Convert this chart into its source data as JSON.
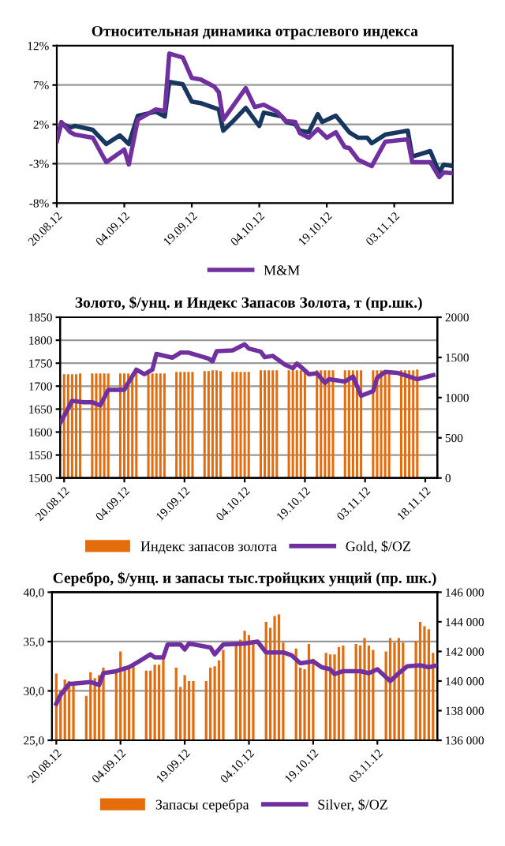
{
  "chart_data": [
    {
      "type": "line",
      "title": "Относительная динамика отраслевого индекса",
      "xlim": [
        "2012-08-20",
        "2012-11-16"
      ],
      "xticks": [
        {
          "value": "2012-08-20",
          "label": "20.08.12"
        },
        {
          "value": "2012-09-04",
          "label": "04.09.12"
        },
        {
          "value": "2012-09-19",
          "label": "19.09.12"
        },
        {
          "value": "2012-10-04",
          "label": "04.10.12"
        },
        {
          "value": "2012-10-19",
          "label": "19.10.12"
        },
        {
          "value": "2012-11-03",
          "label": "03.11.12"
        }
      ],
      "ylim": [
        -8,
        12
      ],
      "yticks": [
        {
          "value": -8,
          "label": "-8%"
        },
        {
          "value": -3,
          "label": "-3%"
        },
        {
          "value": 2,
          "label": "2%"
        },
        {
          "value": 7,
          "label": "7%"
        },
        {
          "value": 12,
          "label": "12%"
        }
      ],
      "grid": "y",
      "legend": "bottom",
      "series": [
        {
          "color": "#17375e",
          "x": [
            "2012-08-20",
            "2012-08-21",
            "2012-08-23",
            "2012-08-24",
            "2012-08-28",
            "2012-08-31",
            "2012-09-03",
            "2012-09-05",
            "2012-09-07",
            "2012-09-11",
            "2012-09-13",
            "2012-09-14",
            "2012-09-17",
            "2012-09-19",
            "2012-09-21",
            "2012-09-25",
            "2012-09-26",
            "2012-09-28",
            "2012-10-01",
            "2012-10-04",
            "2012-10-05",
            "2012-10-09",
            "2012-10-10",
            "2012-10-12",
            "2012-10-13",
            "2012-10-15",
            "2012-10-17",
            "2012-10-18",
            "2012-10-21",
            "2012-10-24",
            "2012-10-26",
            "2012-10-28",
            "2012-10-29",
            "2012-11-01",
            "2012-11-06",
            "2012-11-07",
            "2012-11-11",
            "2012-11-13",
            "2012-11-14",
            "2012-11-16"
          ],
          "values": [
            -0.1,
            2.1,
            1.6,
            1.8,
            1.3,
            -0.5,
            0.6,
            -0.5,
            3.1,
            3.6,
            3.0,
            7.4,
            7.1,
            4.9,
            4.7,
            3.9,
            1.2,
            2.3,
            4.1,
            1.8,
            3.5,
            3.0,
            2.3,
            2.0,
            1.2,
            1.0,
            3.3,
            2.3,
            3.1,
            1.0,
            0.3,
            0.3,
            -0.4,
            0.7,
            1.2,
            -2.1,
            -1.4,
            -4.1,
            -3.1,
            -3.3
          ]
        },
        {
          "name": "M&M",
          "color": "#7030a0",
          "x": [
            "2012-08-20",
            "2012-08-21",
            "2012-08-23",
            "2012-08-24",
            "2012-08-28",
            "2012-08-30",
            "2012-08-31",
            "2012-09-04",
            "2012-09-05",
            "2012-09-07",
            "2012-09-11",
            "2012-09-13",
            "2012-09-14",
            "2012-09-17",
            "2012-09-19",
            "2012-09-21",
            "2012-09-24",
            "2012-09-25",
            "2012-09-26",
            "2012-09-28",
            "2012-10-01",
            "2012-10-03",
            "2012-10-05",
            "2012-10-08",
            "2012-10-10",
            "2012-10-12",
            "2012-10-13",
            "2012-10-15",
            "2012-10-17",
            "2012-10-19",
            "2012-10-21",
            "2012-10-23",
            "2012-10-24",
            "2012-10-26",
            "2012-10-29",
            "2012-11-01",
            "2012-11-06",
            "2012-11-07",
            "2012-11-11",
            "2012-11-13",
            "2012-11-14",
            "2012-11-16"
          ],
          "values": [
            -0.1,
            2.3,
            1.0,
            0.7,
            0.3,
            -1.8,
            -2.8,
            -1.2,
            -3.1,
            2.6,
            3.9,
            3.7,
            11.0,
            10.5,
            7.9,
            7.7,
            6.8,
            6.1,
            2.6,
            4.2,
            6.6,
            4.2,
            4.5,
            3.6,
            2.4,
            2.3,
            0.9,
            0.3,
            1.4,
            0.3,
            1.0,
            -0.9,
            -1.0,
            -2.5,
            -3.3,
            -0.2,
            0.1,
            -2.8,
            -2.8,
            -4.7,
            -4.1,
            -4.2
          ]
        }
      ]
    },
    {
      "type": "bar",
      "title": "Золото, $/унц. и Индекс Запасов Золота, т (пр.шк.)",
      "xlim": [
        "2012-08-19",
        "2012-11-21"
      ],
      "xticks": [
        {
          "value": "2012-08-20",
          "label": "20.08.12"
        },
        {
          "value": "2012-09-04",
          "label": "04.09.12"
        },
        {
          "value": "2012-09-19",
          "label": "19.09.12"
        },
        {
          "value": "2012-10-04",
          "label": "04.10.12"
        },
        {
          "value": "2012-10-19",
          "label": "19.10.12"
        },
        {
          "value": "2012-11-03",
          "label": "03.11.12"
        },
        {
          "value": "2012-11-18",
          "label": "18.11.12"
        }
      ],
      "ylim": [
        1500,
        1850
      ],
      "yticks": [
        1500,
        1550,
        1600,
        1650,
        1700,
        1750,
        1800,
        1850
      ],
      "y2lim": [
        0,
        2000
      ],
      "y2ticks": [
        0,
        500,
        1000,
        1500,
        2000
      ],
      "grid": "y",
      "legend": "bottom",
      "series": [
        {
          "axis": "y2",
          "name": "Индекс запасов золота",
          "color": "#e46c0a",
          "x": [
            "2012-08-20",
            "2012-08-21",
            "2012-08-22",
            "2012-08-23",
            "2012-08-24",
            "2012-08-27",
            "2012-08-28",
            "2012-08-29",
            "2012-08-30",
            "2012-08-31",
            "2012-09-03",
            "2012-09-04",
            "2012-09-05",
            "2012-09-06",
            "2012-09-07",
            "2012-09-10",
            "2012-09-11",
            "2012-09-12",
            "2012-09-13",
            "2012-09-14",
            "2012-09-17",
            "2012-09-18",
            "2012-09-19",
            "2012-09-20",
            "2012-09-21",
            "2012-09-24",
            "2012-09-25",
            "2012-09-26",
            "2012-09-27",
            "2012-09-28",
            "2012-10-01",
            "2012-10-02",
            "2012-10-03",
            "2012-10-04",
            "2012-10-05",
            "2012-10-08",
            "2012-10-09",
            "2012-10-10",
            "2012-10-11",
            "2012-10-12",
            "2012-10-15",
            "2012-10-16",
            "2012-10-17",
            "2012-10-18",
            "2012-10-19",
            "2012-10-22",
            "2012-10-23",
            "2012-10-24",
            "2012-10-25",
            "2012-10-26",
            "2012-10-29",
            "2012-10-30",
            "2012-10-31",
            "2012-11-01",
            "2012-11-02",
            "2012-11-05",
            "2012-11-06",
            "2012-11-07",
            "2012-11-08",
            "2012-11-09",
            "2012-11-12",
            "2012-11-13",
            "2012-11-14",
            "2012-11-15",
            "2012-11-16"
          ],
          "values": [
            1290,
            1290,
            1290,
            1290,
            1300,
            1300,
            1300,
            1300,
            1300,
            1300,
            1300,
            1300,
            1300,
            1300,
            1300,
            1300,
            1300,
            1300,
            1300,
            1300,
            1320,
            1320,
            1320,
            1320,
            1320,
            1330,
            1330,
            1340,
            1340,
            1330,
            1320,
            1320,
            1320,
            1320,
            1320,
            1340,
            1340,
            1340,
            1340,
            1340,
            1340,
            1340,
            1340,
            1340,
            1340,
            1340,
            1340,
            1340,
            1340,
            1340,
            1340,
            1340,
            1340,
            1340,
            1340,
            1340,
            1340,
            1340,
            1340,
            1340,
            1340,
            1340,
            1340,
            1340,
            1350
          ]
        },
        {
          "type": "line",
          "name": "Gold, $/OZ",
          "color": "#7030a0",
          "x": [
            "2012-08-19",
            "2012-08-22",
            "2012-08-25",
            "2012-08-27",
            "2012-08-29",
            "2012-08-31",
            "2012-09-04",
            "2012-09-05",
            "2012-09-07",
            "2012-09-09",
            "2012-09-11",
            "2012-09-12",
            "2012-09-16",
            "2012-09-18",
            "2012-09-20",
            "2012-09-25",
            "2012-09-26",
            "2012-09-27",
            "2012-10-01",
            "2012-10-04",
            "2012-10-05",
            "2012-10-08",
            "2012-10-09",
            "2012-10-11",
            "2012-10-14",
            "2012-10-16",
            "2012-10-17",
            "2012-10-18",
            "2012-10-20",
            "2012-10-22",
            "2012-10-24",
            "2012-10-25",
            "2012-10-29",
            "2012-10-31",
            "2012-11-02",
            "2012-11-05",
            "2012-11-06",
            "2012-11-08",
            "2012-11-11",
            "2012-11-14",
            "2012-11-16",
            "2012-11-20"
          ],
          "values": [
            1619,
            1668,
            1665,
            1665,
            1658,
            1692,
            1692,
            1707,
            1736,
            1726,
            1736,
            1770,
            1762,
            1773,
            1773,
            1760,
            1754,
            1776,
            1778,
            1791,
            1782,
            1775,
            1763,
            1766,
            1747,
            1739,
            1749,
            1742,
            1726,
            1728,
            1707,
            1715,
            1710,
            1721,
            1679,
            1689,
            1718,
            1731,
            1729,
            1721,
            1715,
            1724
          ]
        }
      ]
    },
    {
      "type": "bar",
      "title": "Серебро, $/унц. и запасы тыс.тройцких унций (пр. шк.)",
      "xlim": [
        "2012-08-19",
        "2012-11-17"
      ],
      "xticks": [
        {
          "value": "2012-08-20",
          "label": "20.08.12"
        },
        {
          "value": "2012-09-04",
          "label": "04.09.12"
        },
        {
          "value": "2012-09-19",
          "label": "19.09.12"
        },
        {
          "value": "2012-10-04",
          "label": "04.10.12"
        },
        {
          "value": "2012-10-19",
          "label": "19.10.12"
        },
        {
          "value": "2012-11-03",
          "label": "03.11.12"
        }
      ],
      "ylim": [
        25,
        40
      ],
      "yticks": [
        {
          "value": 25,
          "label": "25,0"
        },
        {
          "value": 30,
          "label": "30,0"
        },
        {
          "value": 35,
          "label": "35,0"
        },
        {
          "value": 40,
          "label": "40,0"
        }
      ],
      "y2lim": [
        136000,
        146000
      ],
      "y2ticks": [
        {
          "value": 136000,
          "label": "136 000"
        },
        {
          "value": 138000,
          "label": "138 000"
        },
        {
          "value": 140000,
          "label": "140 000"
        },
        {
          "value": 142000,
          "label": "142 000"
        },
        {
          "value": 144000,
          "label": "144 000"
        },
        {
          "value": 146000,
          "label": "146 000"
        }
      ],
      "grid": "y",
      "legend": "bottom",
      "series": [
        {
          "axis": "y2",
          "name": "Запасы серебра",
          "color": "#e46c0a",
          "x": [
            "2012-08-20",
            "2012-08-21",
            "2012-08-22",
            "2012-08-23",
            "2012-08-24",
            "2012-08-27",
            "2012-08-28",
            "2012-08-29",
            "2012-08-30",
            "2012-08-31",
            "2012-09-03",
            "2012-09-04",
            "2012-09-05",
            "2012-09-06",
            "2012-09-07",
            "2012-09-10",
            "2012-09-11",
            "2012-09-12",
            "2012-09-13",
            "2012-09-14",
            "2012-09-17",
            "2012-09-18",
            "2012-09-19",
            "2012-09-20",
            "2012-09-21",
            "2012-09-24",
            "2012-09-25",
            "2012-09-26",
            "2012-09-27",
            "2012-09-28",
            "2012-10-01",
            "2012-10-02",
            "2012-10-03",
            "2012-10-04",
            "2012-10-05",
            "2012-10-08",
            "2012-10-09",
            "2012-10-10",
            "2012-10-11",
            "2012-10-12",
            "2012-10-15",
            "2012-10-16",
            "2012-10-17",
            "2012-10-18",
            "2012-10-19",
            "2012-10-22",
            "2012-10-23",
            "2012-10-24",
            "2012-10-25",
            "2012-10-26",
            "2012-10-29",
            "2012-10-30",
            "2012-10-31",
            "2012-11-01",
            "2012-11-02",
            "2012-11-05",
            "2012-11-06",
            "2012-11-07",
            "2012-11-08",
            "2012-11-09",
            "2012-11-12",
            "2012-11-13",
            "2012-11-14",
            "2012-11-15",
            "2012-11-16"
          ],
          "values": [
            140500,
            139400,
            140100,
            140000,
            139700,
            139000,
            140600,
            140200,
            140400,
            140900,
            140800,
            142000,
            141000,
            141000,
            141000,
            140700,
            140700,
            141100,
            141100,
            141700,
            140900,
            139600,
            140400,
            140000,
            140000,
            140000,
            140900,
            141000,
            141400,
            142100,
            142600,
            142800,
            143400,
            143100,
            142600,
            144000,
            143600,
            144400,
            144500,
            142600,
            142200,
            140900,
            140800,
            142500,
            141500,
            141900,
            141800,
            141800,
            142300,
            142400,
            142500,
            142400,
            142900,
            142400,
            142100,
            142000,
            142900,
            142600,
            142900,
            142600,
            142700,
            144000,
            143700,
            143500,
            141900
          ]
        },
        {
          "type": "line",
          "name": "Silver, $/OZ",
          "color": "#7030a0",
          "x": [
            "2012-08-20",
            "2012-08-21",
            "2012-08-23",
            "2012-08-28",
            "2012-08-30",
            "2012-08-31",
            "2012-09-03",
            "2012-09-06",
            "2012-09-08",
            "2012-09-11",
            "2012-09-12",
            "2012-09-14",
            "2012-09-15",
            "2012-09-18",
            "2012-09-19",
            "2012-09-20",
            "2012-09-25",
            "2012-09-26",
            "2012-09-28",
            "2012-10-03",
            "2012-10-06",
            "2012-10-08",
            "2012-10-12",
            "2012-10-14",
            "2012-10-16",
            "2012-10-19",
            "2012-10-21",
            "2012-10-23",
            "2012-10-24",
            "2012-10-26",
            "2012-10-30",
            "2012-11-01",
            "2012-11-03",
            "2012-11-06",
            "2012-11-08",
            "2012-11-10",
            "2012-11-13",
            "2012-11-15",
            "2012-11-17"
          ],
          "values": [
            28.7,
            29.6,
            30.7,
            30.9,
            30.6,
            31.8,
            32.0,
            32.4,
            32.9,
            33.7,
            33.4,
            33.4,
            34.7,
            34.7,
            34.2,
            34.8,
            34.4,
            33.7,
            34.7,
            34.8,
            35.0,
            33.9,
            33.9,
            33.6,
            32.8,
            33.0,
            32.4,
            32.2,
            31.7,
            32.0,
            32.0,
            31.8,
            32.2,
            31.0,
            31.8,
            32.5,
            32.6,
            32.4,
            32.6
          ]
        }
      ]
    }
  ]
}
